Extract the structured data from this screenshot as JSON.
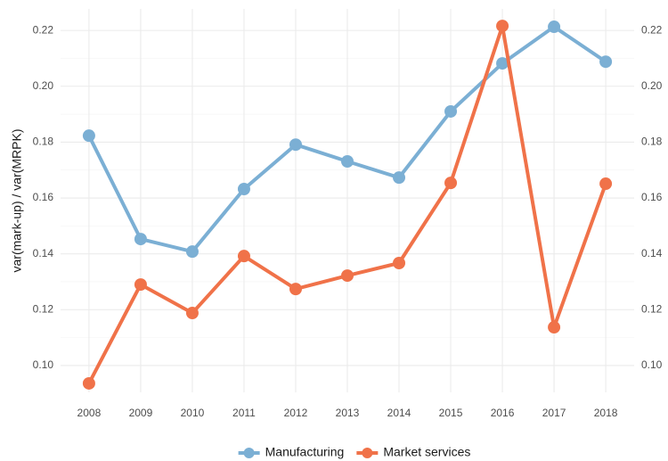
{
  "chart_data": {
    "type": "line",
    "y_label": "var(mark-up) / var(MRPK)",
    "x": [
      2008,
      2009,
      2010,
      2011,
      2012,
      2013,
      2014,
      2015,
      2016,
      2017,
      2018
    ],
    "xlim": [
      2007.45,
      2018.55
    ],
    "xticks": [
      2008,
      2009,
      2010,
      2011,
      2012,
      2013,
      2014,
      2015,
      2016,
      2017,
      2018
    ],
    "ylim": [
      0.0904,
      0.2277
    ],
    "yticks": [
      {
        "value": 0.1,
        "label": "0.10"
      },
      0.12,
      0.14,
      0.16,
      0.18,
      {
        "value": 0.2,
        "label": "0.20"
      },
      0.22
    ],
    "y2lim": [
      0.0904,
      0.2277
    ],
    "y2ticks": [
      {
        "value": 0.1,
        "label": "0.10"
      },
      0.12,
      0.14,
      0.16,
      0.18,
      {
        "value": 0.2,
        "label": "0.20"
      },
      0.22
    ],
    "grid": true,
    "legend": "bottom",
    "series": [
      {
        "name": "Manufacturing",
        "color": "#7bafd4",
        "values": [
          0.1823,
          0.1453,
          0.1408,
          0.1632,
          0.1791,
          0.1731,
          0.1673,
          0.191,
          0.2082,
          0.2213,
          0.2088
        ]
      },
      {
        "name": "Market services",
        "color": "#f07249",
        "values": [
          0.0936,
          0.129,
          0.1188,
          0.1392,
          0.1274,
          0.1322,
          0.1367,
          0.1654,
          0.2216,
          0.1137,
          0.1651
        ]
      }
    ]
  }
}
